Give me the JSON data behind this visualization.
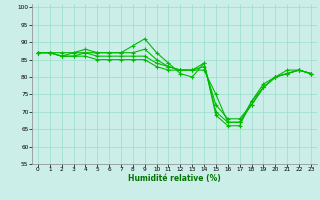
{
  "title": "",
  "xlabel": "Humidité relative (%)",
  "ylabel": "",
  "background_color": "#cceee8",
  "grid_color": "#99ddcc",
  "line_color": "#00bb00",
  "marker": "+",
  "xlim": [
    -0.5,
    23.5
  ],
  "ylim": [
    55,
    101
  ],
  "yticks": [
    55,
    60,
    65,
    70,
    75,
    80,
    85,
    90,
    95,
    100
  ],
  "xticks": [
    0,
    1,
    2,
    3,
    4,
    5,
    6,
    7,
    8,
    9,
    10,
    11,
    12,
    13,
    14,
    15,
    16,
    17,
    18,
    19,
    20,
    21,
    22,
    23
  ],
  "series": [
    [
      87,
      87,
      87,
      87,
      87,
      87,
      87,
      87,
      89,
      91,
      87,
      84,
      81,
      80,
      84,
      69,
      66,
      66,
      73,
      78,
      80,
      82,
      82,
      81
    ],
    [
      87,
      87,
      86,
      87,
      88,
      87,
      87,
      87,
      87,
      88,
      85,
      83,
      82,
      82,
      84,
      70,
      67,
      67,
      73,
      77,
      80,
      81,
      82,
      81
    ],
    [
      87,
      87,
      86,
      86,
      87,
      86,
      86,
      86,
      86,
      86,
      84,
      83,
      82,
      82,
      83,
      72,
      68,
      68,
      72,
      77,
      80,
      81,
      82,
      81
    ],
    [
      87,
      87,
      86,
      86,
      86,
      85,
      85,
      85,
      85,
      85,
      83,
      82,
      82,
      82,
      82,
      75,
      67,
      67,
      72,
      77,
      80,
      81,
      82,
      81
    ]
  ]
}
